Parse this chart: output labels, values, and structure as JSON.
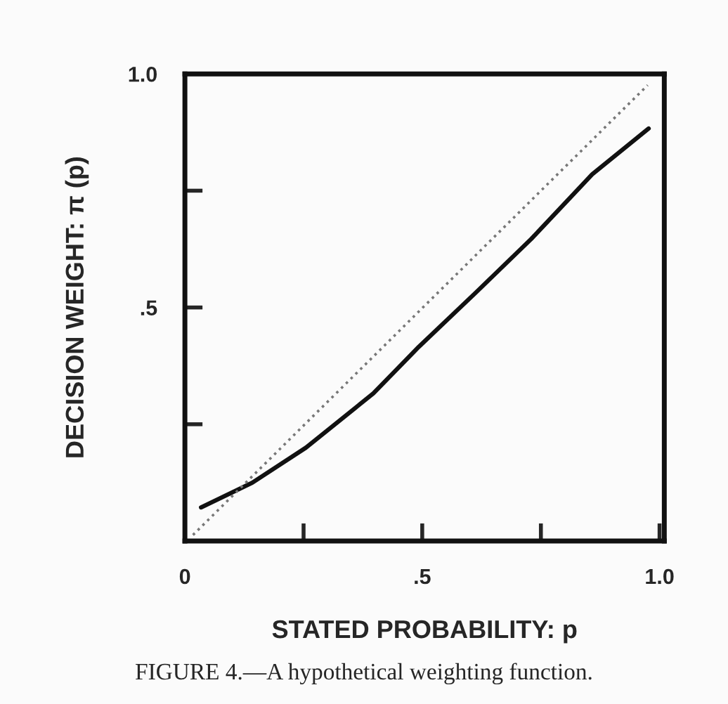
{
  "chart_data": {
    "type": "line",
    "xlabel": "STATED PROBABILITY: p",
    "ylabel": "DECISION WEIGHT: π (p)",
    "annotations": [
      "FIGURE 4.—A hypothetical weighting function."
    ],
    "series": [
      {
        "color": "#111111",
        "line_style": "solid",
        "x": [
          0.034,
          0.142,
          0.255,
          0.397,
          0.493,
          0.613,
          0.73,
          0.858,
          0.977
        ],
        "values": [
          0.072,
          0.125,
          0.2,
          0.316,
          0.416,
          0.532,
          0.647,
          0.785,
          0.883
        ]
      },
      {
        "color": "#777777",
        "line_style": "dotted",
        "x": [
          0.017,
          0.975
        ],
        "values": [
          0.013,
          0.976
        ]
      }
    ],
    "xlim": [
      0,
      1.01
    ],
    "ylim": [
      0,
      1.0
    ],
    "xticks": [
      {
        "value": 0,
        "label": "0"
      },
      {
        "value": 0.25,
        "label": null
      },
      {
        "value": 0.5,
        "label": ".5"
      },
      {
        "value": 0.75,
        "label": null
      },
      {
        "value": 1.0,
        "label": "1.0"
      }
    ],
    "yticks": [
      {
        "value": 0.25,
        "label": null
      },
      {
        "value": 0.5,
        "label": ".5"
      },
      {
        "value": 0.75,
        "label": null
      },
      {
        "value": 1.0,
        "label": "1.0"
      }
    ],
    "grid": false,
    "legend": false,
    "marker": "none"
  }
}
